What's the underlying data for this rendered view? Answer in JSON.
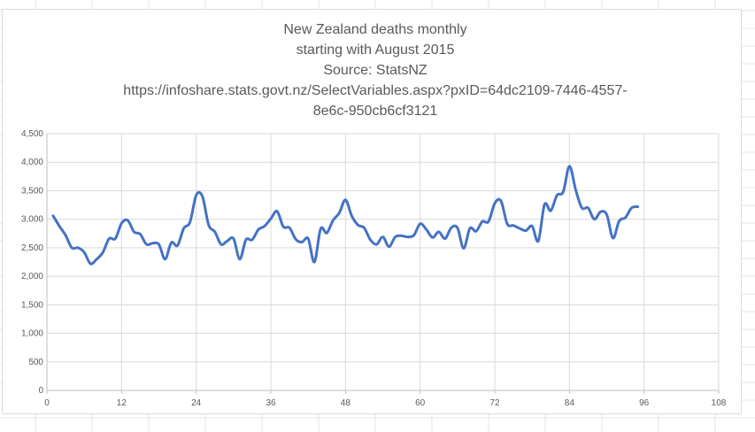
{
  "chart_data": {
    "type": "line",
    "title_lines": [
      "New Zealand deaths monthly",
      "starting with August 2015",
      "Source: StatsNZ",
      "https://infoshare.stats.govt.nz/SelectVariables.aspx?pxID=64dc2109-7446-4557-",
      "8e6c-950cb6cf3121"
    ],
    "xlabel": "",
    "ylabel": "",
    "xlim": [
      0,
      108
    ],
    "ylim": [
      0,
      4500
    ],
    "x_ticks": [
      "0",
      "12",
      "24",
      "36",
      "48",
      "60",
      "72",
      "84",
      "96",
      "108"
    ],
    "y_ticks": [
      "0",
      "500",
      "1,000",
      "1,500",
      "2,000",
      "2,500",
      "3,000",
      "3,500",
      "4,000",
      "4,500"
    ],
    "grid": "horizontal",
    "legend": "none",
    "series": [
      {
        "color": "#4472c4",
        "x": [
          1,
          2,
          3,
          4,
          5,
          6,
          7,
          8,
          9,
          10,
          11,
          12,
          13,
          14,
          15,
          16,
          17,
          18,
          19,
          20,
          21,
          22,
          23,
          24,
          25,
          26,
          27,
          28,
          29,
          30,
          31,
          32,
          33,
          34,
          35,
          36,
          37,
          38,
          39,
          40,
          41,
          42,
          43,
          44,
          45,
          46,
          47,
          48,
          49,
          50,
          51,
          52,
          53,
          54,
          55,
          56,
          57,
          58,
          59,
          60,
          61,
          62,
          63,
          64,
          65,
          66,
          67,
          68,
          69,
          70,
          71,
          72,
          73,
          74,
          75,
          76,
          77,
          78,
          79,
          80,
          81,
          82,
          83,
          84,
          85,
          86,
          87,
          88,
          89,
          90,
          91,
          92,
          93,
          94,
          95
        ],
        "y": [
          3060,
          2880,
          2720,
          2500,
          2500,
          2420,
          2220,
          2300,
          2420,
          2660,
          2660,
          2930,
          2980,
          2780,
          2740,
          2560,
          2580,
          2560,
          2300,
          2590,
          2540,
          2840,
          2950,
          3420,
          3400,
          2900,
          2780,
          2560,
          2620,
          2660,
          2300,
          2640,
          2640,
          2820,
          2880,
          3010,
          3140,
          2870,
          2850,
          2650,
          2600,
          2660,
          2250,
          2830,
          2760,
          2980,
          3110,
          3340,
          3060,
          2900,
          2850,
          2640,
          2560,
          2690,
          2520,
          2690,
          2710,
          2690,
          2720,
          2920,
          2820,
          2680,
          2780,
          2660,
          2850,
          2850,
          2490,
          2840,
          2790,
          2960,
          2960,
          3280,
          3320,
          2920,
          2890,
          2840,
          2800,
          2880,
          2620,
          3260,
          3150,
          3420,
          3480,
          3930,
          3520,
          3200,
          3200,
          3000,
          3130,
          3080,
          2670,
          2970,
          3030,
          3200,
          3220
        ]
      }
    ]
  }
}
